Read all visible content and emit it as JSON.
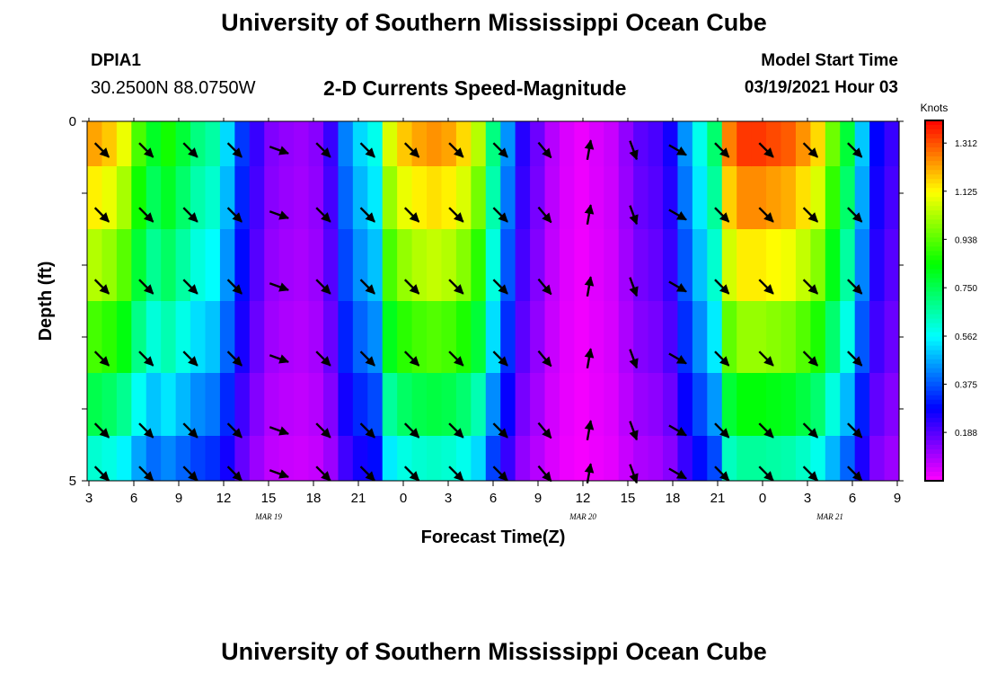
{
  "header": {
    "title": "University of Southern Mississippi Ocean Cube",
    "station_id": "DPIA1",
    "station_coords": "30.2500N 88.0750W",
    "plot_title": "2-D Currents Speed-Magnitude",
    "model_start_label": "Model Start Time",
    "model_start_value": "03/19/2021 Hour 03"
  },
  "footer": {
    "title": "University of Southern Mississippi Ocean Cube"
  },
  "chart_data": {
    "type": "heatmap",
    "title": "2-D Currents Speed-Magnitude",
    "xlabel": "Forecast Time(Z)",
    "ylabel": "Depth (ft)",
    "x_tick_labels": [
      "3",
      "6",
      "9",
      "12",
      "15",
      "18",
      "21",
      "0",
      "3",
      "6",
      "9",
      "12",
      "15",
      "18",
      "21",
      "0",
      "3",
      "6",
      "9"
    ],
    "y_tick_labels": [
      "0",
      "5"
    ],
    "y_minor_ticks": 5,
    "date_labels": [
      {
        "label": "MAR  19",
        "tick_index": 4
      },
      {
        "label": "MAR  20",
        "tick_index": 11
      },
      {
        "label": "MAR  21",
        "tick_index": 16.5
      }
    ],
    "ylim": [
      0,
      5
    ],
    "colorbar": {
      "unit": "Knots",
      "min": 0,
      "max": 1.4,
      "tick_labels": [
        "1.312",
        "1.125",
        "0.938",
        "0.750",
        "0.562",
        "0.375",
        "0.188"
      ],
      "tick_values": [
        1.312,
        1.125,
        0.938,
        0.75,
        0.562,
        0.375,
        0.188
      ]
    },
    "times_hours": [
      3,
      4,
      5,
      6,
      7,
      8,
      9,
      10,
      11,
      12,
      13,
      14,
      15,
      16,
      17,
      18,
      19,
      20,
      21,
      22,
      23,
      24,
      25,
      26,
      27,
      28,
      29,
      30,
      31,
      32,
      33,
      34,
      35,
      36,
      37,
      38,
      39,
      40,
      41,
      42,
      43,
      44,
      45,
      46,
      47,
      48,
      49,
      50,
      51,
      52,
      53,
      54,
      55,
      56,
      57
    ],
    "depth_layer_centers_ft": [
      0.25,
      1.0,
      2.0,
      3.0,
      4.0,
      4.75
    ],
    "speed_layer_profile": [
      1.0,
      0.93,
      0.85,
      0.75,
      0.62,
      0.5
    ],
    "surface_speed_knots": [
      1.22,
      1.18,
      1.1,
      0.92,
      0.8,
      0.86,
      0.78,
      0.7,
      0.66,
      0.52,
      0.34,
      0.22,
      0.14,
      0.12,
      0.11,
      0.13,
      0.22,
      0.42,
      0.52,
      0.58,
      1.08,
      1.18,
      1.22,
      1.24,
      1.22,
      1.16,
      1.04,
      0.7,
      0.44,
      0.24,
      0.16,
      0.08,
      0.04,
      0.02,
      0.04,
      0.06,
      0.12,
      0.18,
      0.2,
      0.26,
      0.44,
      0.58,
      0.72,
      1.26,
      1.34,
      1.34,
      1.32,
      1.3,
      1.24,
      1.16,
      0.96,
      0.78,
      0.5,
      0.28,
      0.22
    ],
    "arrows": [
      {
        "t": 4,
        "dir_deg": 135,
        "layer": "all"
      },
      {
        "t": 7,
        "dir_deg": 135,
        "layer": "all"
      },
      {
        "t": 10,
        "dir_deg": 135,
        "layer": "all"
      },
      {
        "t": 13,
        "dir_deg": 135,
        "layer": "all"
      },
      {
        "t": 16,
        "dir_deg": 110,
        "layer": "all"
      },
      {
        "t": 19,
        "dir_deg": 135,
        "layer": "all"
      },
      {
        "t": 22,
        "dir_deg": 135,
        "layer": "all"
      },
      {
        "t": 25,
        "dir_deg": 135,
        "layer": "all"
      },
      {
        "t": 28,
        "dir_deg": 135,
        "layer": "all"
      },
      {
        "t": 31,
        "dir_deg": 135,
        "layer": "all"
      },
      {
        "t": 34,
        "dir_deg": 140,
        "layer": "all"
      },
      {
        "t": 37,
        "dir_deg": 10,
        "layer": "all"
      },
      {
        "t": 40,
        "dir_deg": 160,
        "layer": "all"
      },
      {
        "t": 43,
        "dir_deg": 120,
        "layer": "all"
      },
      {
        "t": 46,
        "dir_deg": 135,
        "layer": "all"
      },
      {
        "t": 49,
        "dir_deg": 135,
        "layer": "all"
      },
      {
        "t": 52,
        "dir_deg": 135,
        "layer": "all"
      },
      {
        "t": 55,
        "dir_deg": 135,
        "layer": "all"
      }
    ]
  }
}
